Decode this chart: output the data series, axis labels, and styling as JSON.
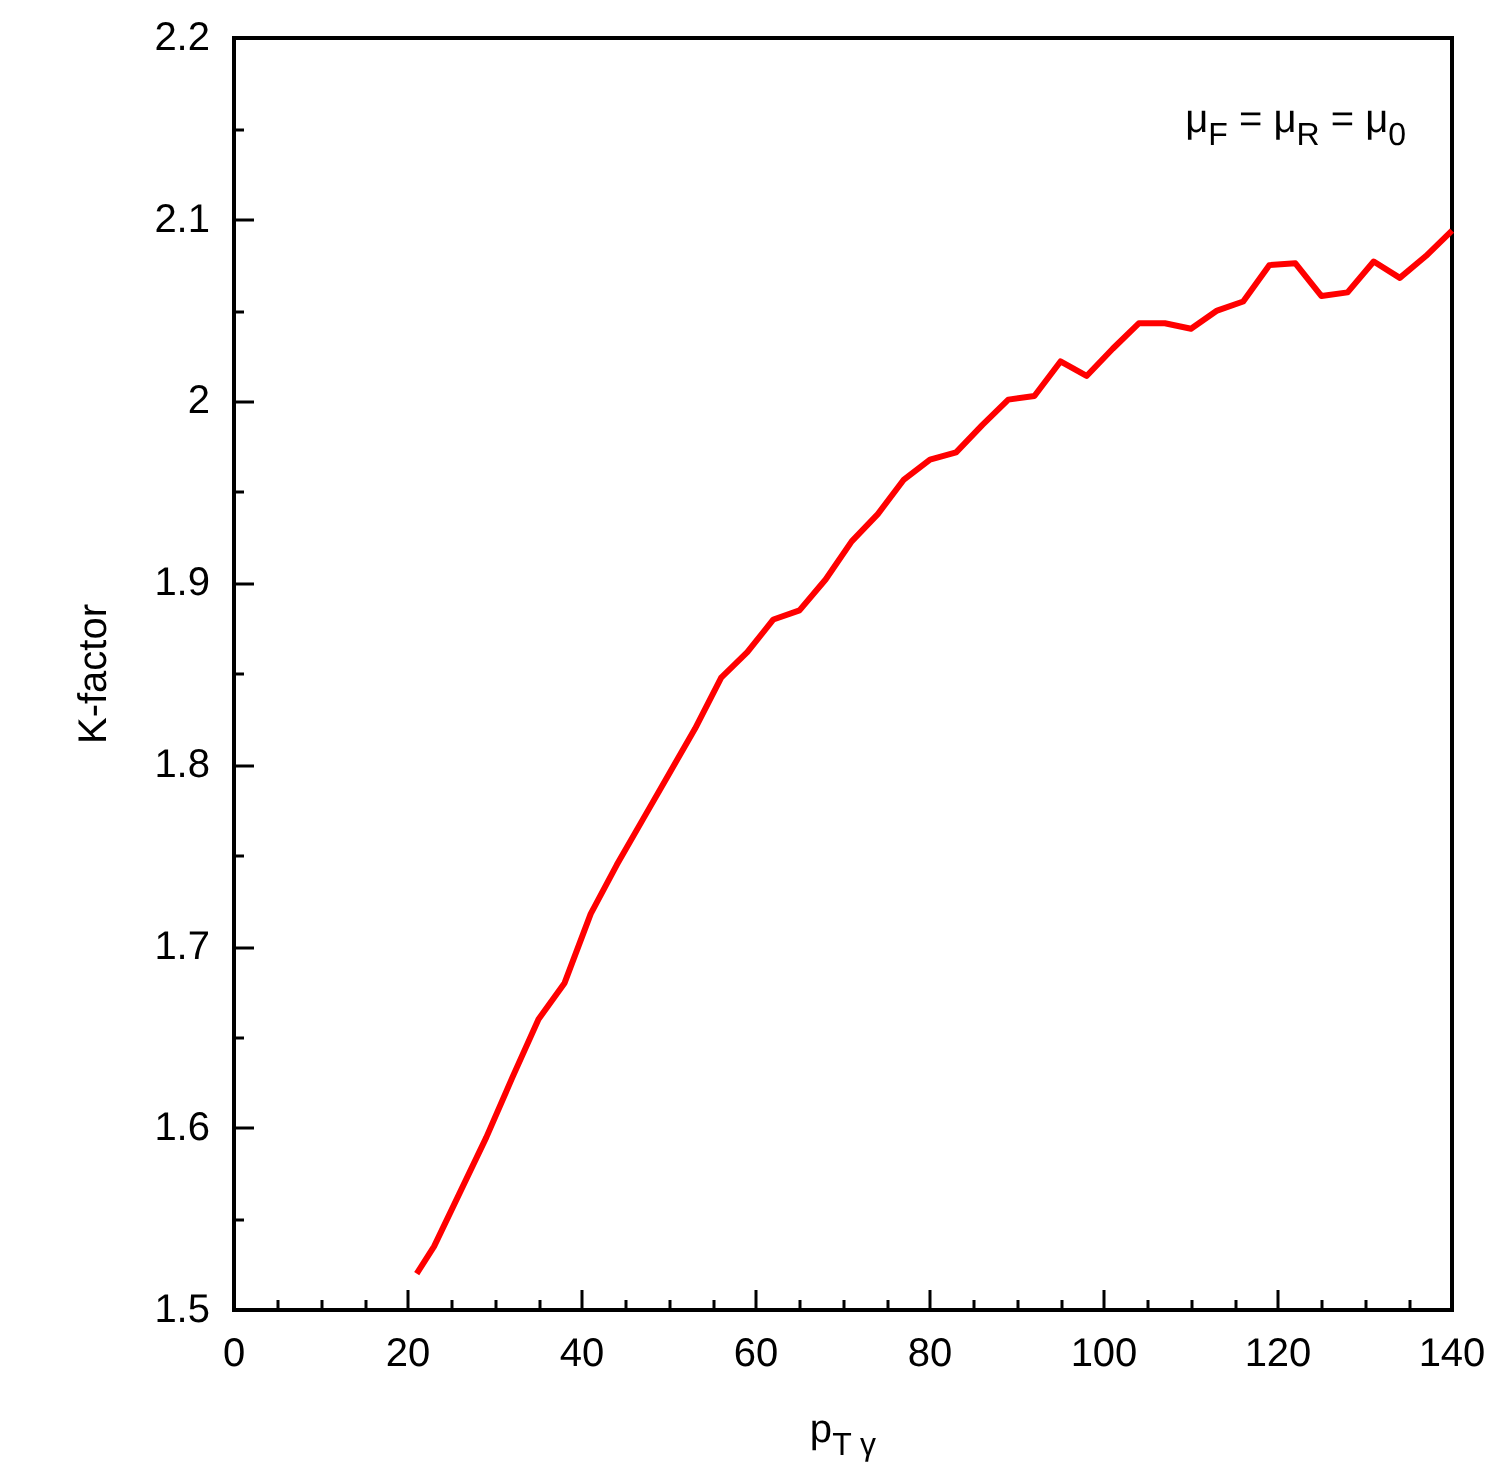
{
  "chart_data": {
    "type": "line",
    "xlabel": "p$_{T γ}$",
    "ylabel": "K-factor",
    "annotations": [
      "μ$_{F}$ = μ$_{R}$ = μ$_{0}$"
    ],
    "x": [
      21,
      23,
      26,
      29,
      32,
      35,
      38,
      41,
      44,
      47,
      50,
      53,
      56,
      59,
      62,
      65,
      68,
      71,
      74,
      77,
      80,
      83,
      86,
      89,
      92,
      95,
      98,
      101,
      104,
      107,
      110,
      113,
      116,
      119,
      122,
      125,
      128,
      131,
      134,
      137,
      140
    ],
    "series": [
      {
        "color": "#ff0000",
        "values": [
          1.52,
          1.535,
          1.565,
          1.595,
          1.628,
          1.66,
          1.68,
          1.718,
          1.745,
          1.77,
          1.795,
          1.82,
          1.848,
          1.862,
          1.88,
          1.885,
          1.902,
          1.923,
          1.938,
          1.957,
          1.968,
          1.972,
          1.987,
          2.001,
          2.003,
          2.022,
          2.014,
          2.029,
          2.043,
          2.043,
          2.04,
          2.05,
          2.055,
          2.075,
          2.076,
          2.058,
          2.06,
          2.077,
          2.068,
          2.08,
          2.094
        ]
      }
    ],
    "xlim": [
      0,
      140
    ],
    "xticks": [
      0,
      20,
      40,
      60,
      80,
      100,
      120,
      140
    ],
    "ylim": [
      1.5,
      2.2
    ],
    "yticks": [
      1.5,
      1.6,
      1.7,
      1.8,
      1.9,
      2,
      2.1,
      2.2
    ],
    "grid": false,
    "marker": "none",
    "line_style": "solid"
  }
}
